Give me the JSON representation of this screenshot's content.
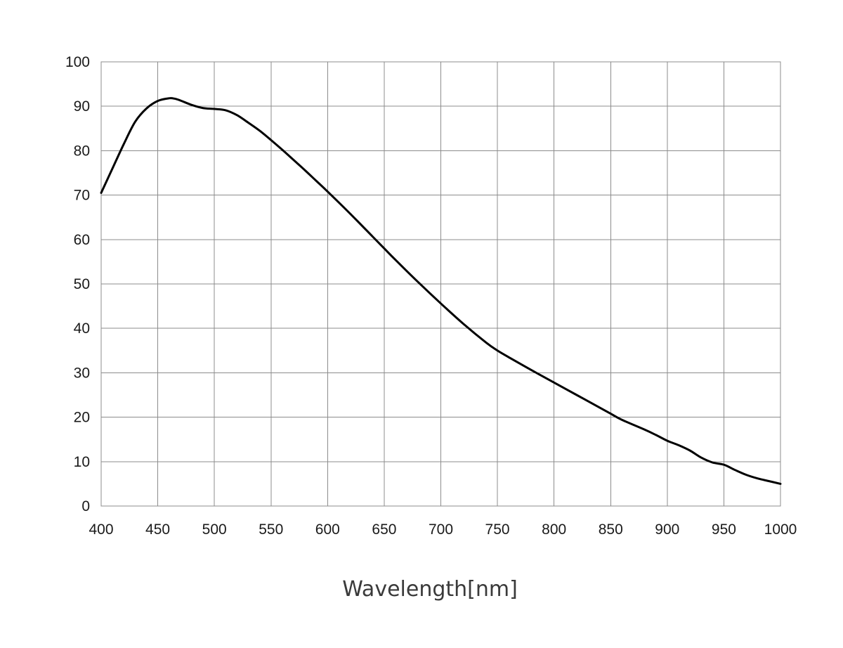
{
  "chart_data": {
    "type": "line",
    "title": "",
    "xlabel": "Wavelength[nm]",
    "ylabel": "",
    "xlim": [
      400,
      1000
    ],
    "ylim": [
      0,
      100
    ],
    "x_ticks": [
      400,
      450,
      500,
      550,
      600,
      650,
      700,
      750,
      800,
      850,
      900,
      950,
      1000
    ],
    "y_ticks": [
      0,
      10,
      20,
      30,
      40,
      50,
      60,
      70,
      80,
      90,
      100
    ],
    "grid": true,
    "legend": "none",
    "line_color": "#000000",
    "grid_color": "#8c8c8c",
    "series": [
      {
        "x": [
          400,
          410,
          420,
          430,
          440,
          450,
          460,
          465,
          470,
          480,
          490,
          500,
          510,
          520,
          530,
          540,
          550,
          560,
          570,
          580,
          590,
          600,
          620,
          640,
          650,
          660,
          680,
          700,
          720,
          740,
          750,
          760,
          780,
          800,
          820,
          840,
          850,
          860,
          880,
          890,
          900,
          910,
          920,
          930,
          940,
          950,
          960,
          970,
          980,
          990,
          1000
        ],
        "y": [
          70.5,
          76.0,
          81.5,
          86.5,
          89.5,
          91.2,
          91.8,
          91.7,
          91.3,
          90.3,
          89.6,
          89.4,
          89.1,
          88.0,
          86.3,
          84.5,
          82.4,
          80.2,
          77.9,
          75.6,
          73.2,
          70.8,
          65.8,
          60.6,
          58.0,
          55.4,
          50.4,
          45.6,
          41.0,
          36.8,
          35.0,
          33.5,
          30.6,
          27.8,
          25.0,
          22.2,
          20.8,
          19.4,
          17.2,
          16.0,
          14.7,
          13.7,
          12.5,
          10.9,
          9.8,
          9.3,
          8.1,
          7.0,
          6.2,
          5.6,
          5.0
        ]
      }
    ]
  }
}
